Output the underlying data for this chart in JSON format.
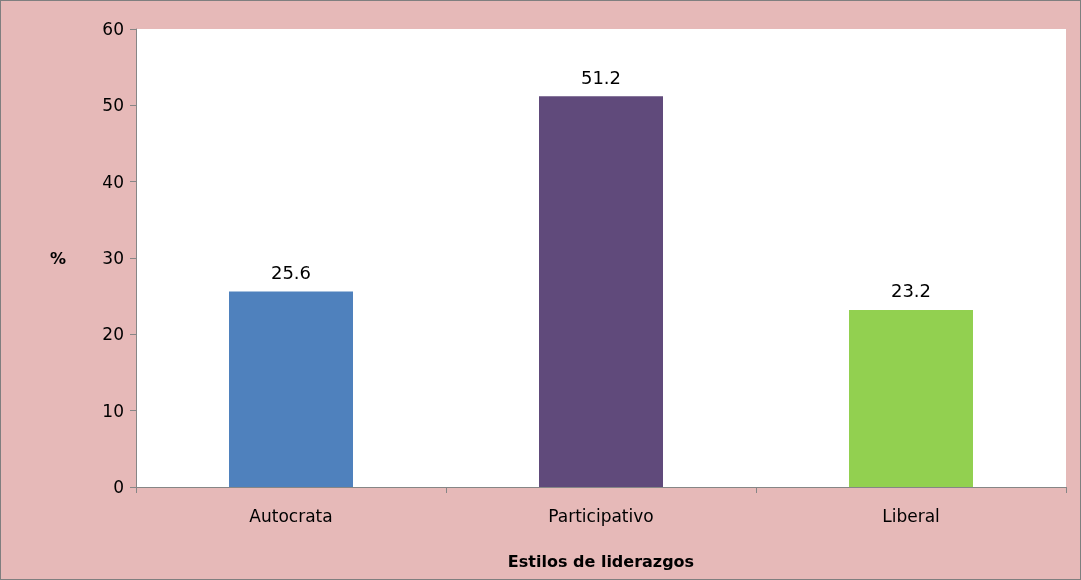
{
  "chart_data": {
    "type": "bar",
    "xlabel": "Estilos de liderazgos",
    "ylabel": "%",
    "categories": [
      "Autocrata",
      "Participativo",
      "Liberal"
    ],
    "values": [
      25.6,
      51.2,
      23.2
    ],
    "colors": [
      "#4f81bd",
      "#604a7b",
      "#92d050"
    ],
    "ylim": [
      0,
      60
    ],
    "yticks": [
      0,
      10,
      20,
      30,
      40,
      50,
      60
    ],
    "data_labels": true,
    "grid": false
  }
}
